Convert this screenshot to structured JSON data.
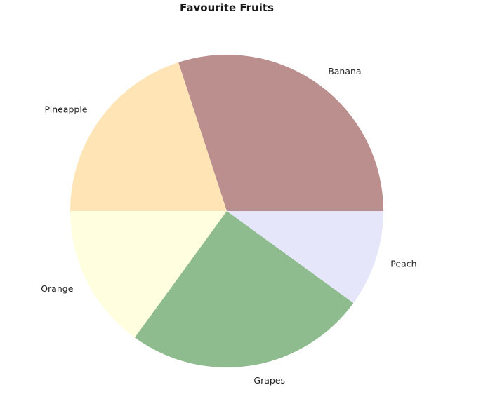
{
  "chart_data": {
    "type": "pie",
    "title": "Favourite Fruits",
    "start_angle_deg": 0,
    "direction": "counterclockwise",
    "slices": [
      {
        "label": "Banana",
        "value": 30,
        "color": "#bc8f8f"
      },
      {
        "label": "Pineapple",
        "value": 20,
        "color": "#ffe4b5"
      },
      {
        "label": "Orange",
        "value": 15,
        "color": "#ffffe0"
      },
      {
        "label": "Grapes",
        "value": 25,
        "color": "#8fbc8f"
      },
      {
        "label": "Peach",
        "value": 10,
        "color": "#e6e6fa"
      }
    ],
    "legend": "none"
  }
}
